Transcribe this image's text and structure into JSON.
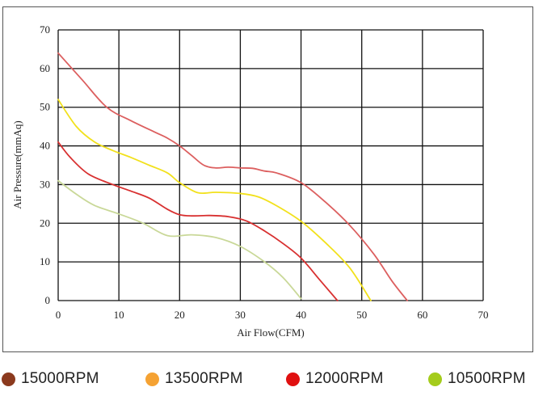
{
  "chart_data": {
    "type": "line",
    "title": "",
    "xlabel": "Air Flow(CFM)",
    "ylabel": "Air Pressure(mmAq)",
    "xlim": [
      0,
      70
    ],
    "ylim": [
      0,
      70
    ],
    "xticks": [
      0,
      10,
      20,
      30,
      40,
      50,
      60,
      70
    ],
    "yticks": [
      0,
      10,
      20,
      30,
      40,
      50,
      60,
      70
    ],
    "grid": true,
    "legend_position": "bottom",
    "series": [
      {
        "name": "15000RPM",
        "line_color": "#dc5f5f",
        "marker_color": "#8b3a1e",
        "points": [
          [
            0,
            64
          ],
          [
            4,
            57
          ],
          [
            8,
            50
          ],
          [
            12,
            46.5
          ],
          [
            16,
            43.5
          ],
          [
            18,
            42
          ],
          [
            20,
            40
          ],
          [
            22,
            37.5
          ],
          [
            24,
            35
          ],
          [
            26,
            34.3
          ],
          [
            28,
            34.5
          ],
          [
            30,
            34.3
          ],
          [
            32,
            34.2
          ],
          [
            34,
            33.5
          ],
          [
            36,
            33
          ],
          [
            40,
            30.5
          ],
          [
            44,
            25.5
          ],
          [
            48,
            19.5
          ],
          [
            52,
            12
          ],
          [
            55,
            5
          ],
          [
            57.5,
            0
          ]
        ]
      },
      {
        "name": "13500RPM",
        "line_color": "#f2e11c",
        "marker_color": "#f5a233",
        "points": [
          [
            0,
            52
          ],
          [
            3,
            45
          ],
          [
            6,
            41
          ],
          [
            9,
            38.8
          ],
          [
            12,
            37
          ],
          [
            15,
            35
          ],
          [
            18,
            33
          ],
          [
            20,
            30.5
          ],
          [
            23,
            27.9
          ],
          [
            26,
            28
          ],
          [
            30,
            27.7
          ],
          [
            33,
            26.8
          ],
          [
            36,
            24.5
          ],
          [
            40,
            20.5
          ],
          [
            44,
            15
          ],
          [
            48,
            8.5
          ],
          [
            51.5,
            0
          ]
        ]
      },
      {
        "name": "12000RPM",
        "line_color": "#d83030",
        "marker_color": "#e01010",
        "points": [
          [
            0,
            41
          ],
          [
            2,
            37
          ],
          [
            5,
            32.7
          ],
          [
            9,
            30
          ],
          [
            12,
            28.3
          ],
          [
            15,
            26.5
          ],
          [
            18,
            23.6
          ],
          [
            20,
            22.2
          ],
          [
            22,
            21.9
          ],
          [
            25,
            22
          ],
          [
            28,
            21.7
          ],
          [
            31,
            20.6
          ],
          [
            34,
            18
          ],
          [
            37,
            14.8
          ],
          [
            40,
            11
          ],
          [
            43,
            5.5
          ],
          [
            46,
            0
          ]
        ]
      },
      {
        "name": "10500RPM",
        "line_color": "#c9d898",
        "marker_color": "#a4cc1c",
        "points": [
          [
            0,
            31
          ],
          [
            3,
            27.5
          ],
          [
            6,
            24.6
          ],
          [
            10,
            22.4
          ],
          [
            14,
            20
          ],
          [
            18,
            16.8
          ],
          [
            22,
            17
          ],
          [
            26,
            16.3
          ],
          [
            30,
            14
          ],
          [
            34,
            10
          ],
          [
            37,
            6
          ],
          [
            40,
            0.5
          ]
        ]
      }
    ]
  }
}
